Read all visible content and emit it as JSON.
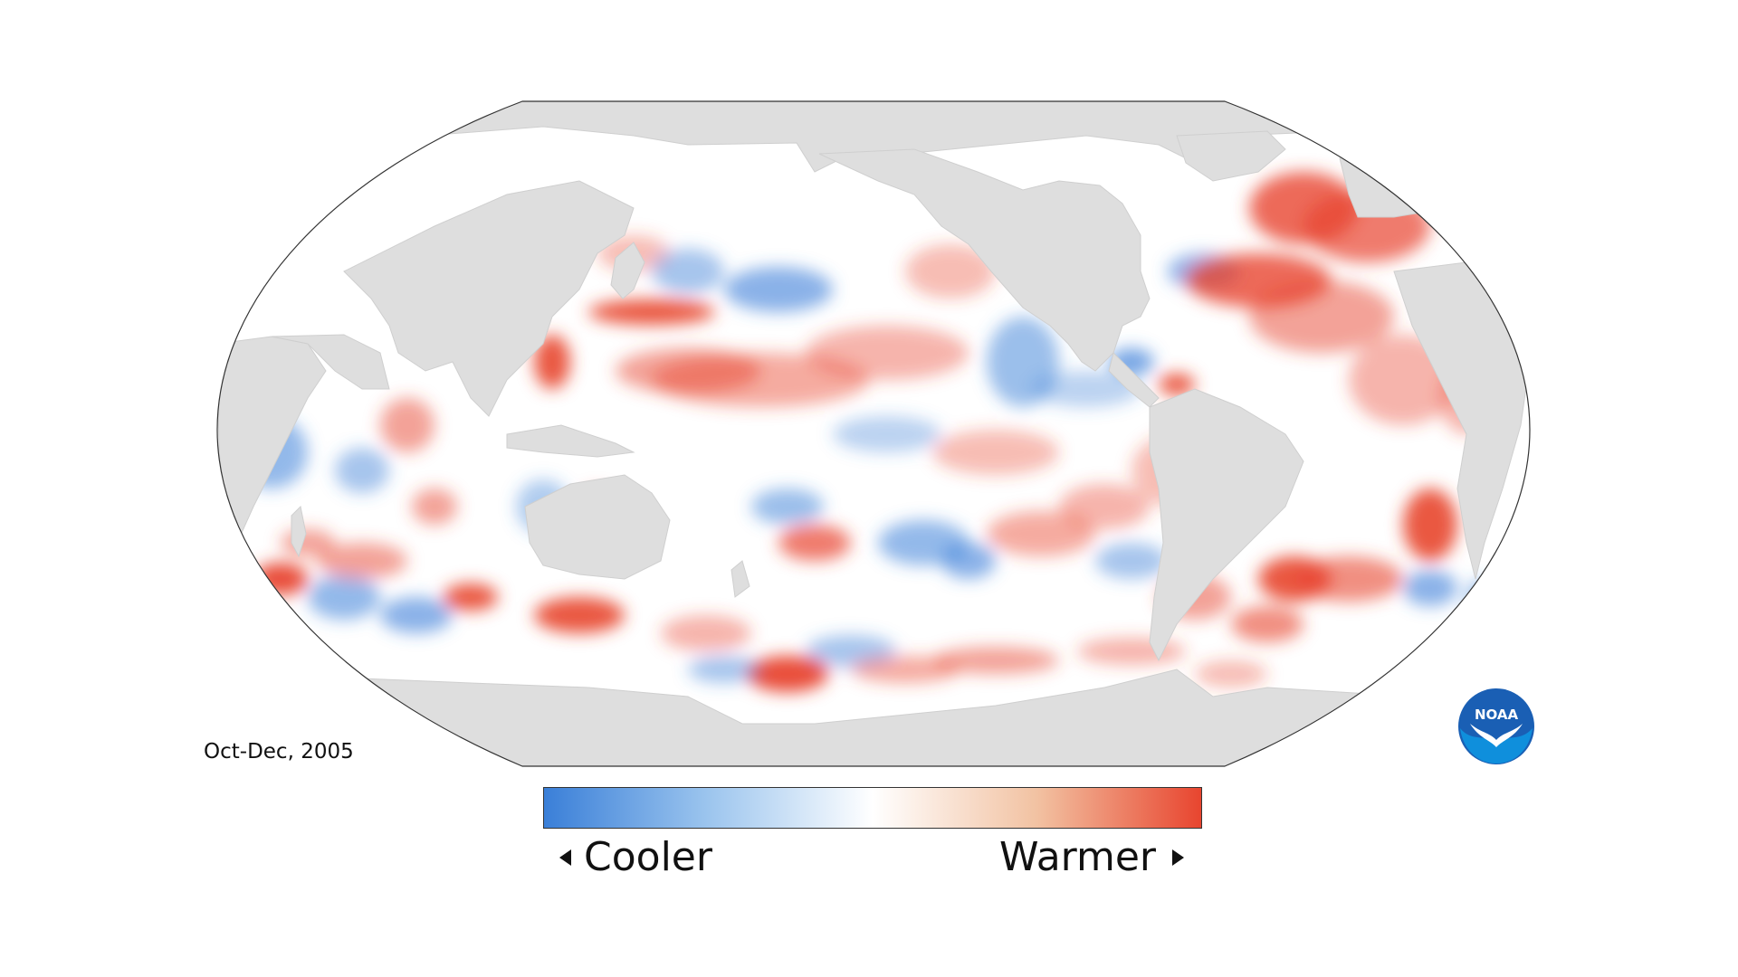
{
  "map": {
    "period_label": "Oct-Dec, 2005",
    "colors": {
      "land": "#dedede",
      "ocean_neutral": "#ffffff",
      "cool": "#3a7fd8",
      "warm": "#e8452f",
      "outline": "#333333"
    }
  },
  "legend": {
    "low_label": "Cooler",
    "high_label": "Warmer",
    "gradient": [
      "#3a7fd8",
      "#9cc5ee",
      "#ffffff",
      "#f2c2a2",
      "#e8452f"
    ]
  },
  "logo": {
    "text": "NOAA",
    "icon": "noaa-logo-icon"
  }
}
